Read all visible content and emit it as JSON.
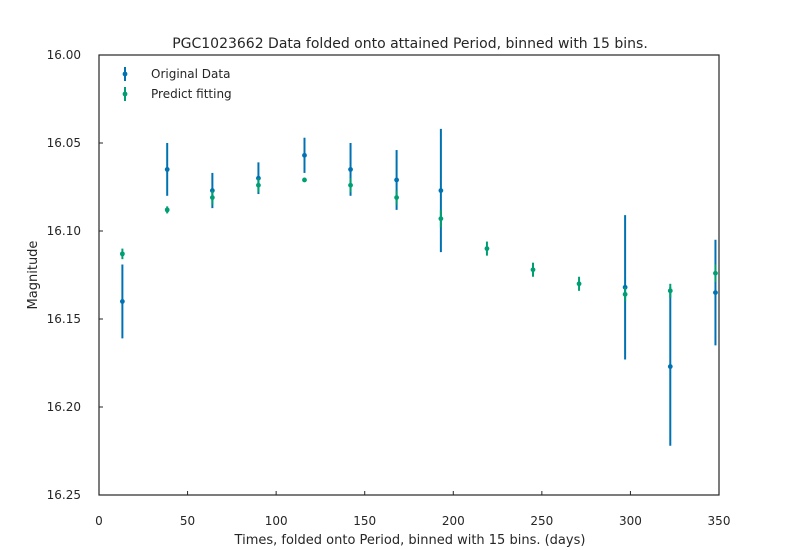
{
  "chart_data": {
    "type": "scatter",
    "title": "PGC1023662 Data folded onto attained Period, binned with 15 bins.",
    "xlabel": "Times, folded onto Period, binned with 15 bins. (days)",
    "ylabel": "Magnitude",
    "xlim": [
      0,
      350
    ],
    "ylim": [
      16.25,
      16.0
    ],
    "y_inverted": true,
    "xticks": [
      "0",
      "50",
      "100",
      "150",
      "200",
      "250",
      "300",
      "350"
    ],
    "yticks": [
      "16.00",
      "16.05",
      "16.10",
      "16.15",
      "16.20",
      "16.25"
    ],
    "grid": false,
    "legend_position": "top-left",
    "series": [
      {
        "name": "Original Data",
        "color": "#0072b2",
        "points": [
          {
            "x": 13.2,
            "y": 16.14,
            "err": 0.021
          },
          {
            "x": 38.5,
            "y": 16.065,
            "err": 0.015
          },
          {
            "x": 64.0,
            "y": 16.077,
            "err": 0.01
          },
          {
            "x": 90.0,
            "y": 16.07,
            "err": 0.009
          },
          {
            "x": 116.0,
            "y": 16.057,
            "err": 0.01
          },
          {
            "x": 142.0,
            "y": 16.065,
            "err": 0.015
          },
          {
            "x": 168.0,
            "y": 16.071,
            "err": 0.017
          },
          {
            "x": 193.0,
            "y": 16.077,
            "err": 0.035
          },
          {
            "x": 297.0,
            "y": 16.132,
            "err": 0.041
          },
          {
            "x": 322.5,
            "y": 16.177,
            "err": 0.045
          },
          {
            "x": 348.0,
            "y": 16.135,
            "err": 0.03
          }
        ]
      },
      {
        "name": "Predict fitting",
        "color": "#009e73",
        "points": [
          {
            "x": 13.2,
            "y": 16.113,
            "err": 0.003
          },
          {
            "x": 38.5,
            "y": 16.088,
            "err": 0.002
          },
          {
            "x": 64.0,
            "y": 16.081,
            "err": 0.004
          },
          {
            "x": 90.0,
            "y": 16.074,
            "err": 0.004
          },
          {
            "x": 116.0,
            "y": 16.071,
            "err": 0.001
          },
          {
            "x": 142.0,
            "y": 16.074,
            "err": 0.004
          },
          {
            "x": 168.0,
            "y": 16.081,
            "err": 0.004
          },
          {
            "x": 193.0,
            "y": 16.093,
            "err": 0.005
          },
          {
            "x": 219.0,
            "y": 16.11,
            "err": 0.004
          },
          {
            "x": 245.0,
            "y": 16.122,
            "err": 0.004
          },
          {
            "x": 271.0,
            "y": 16.13,
            "err": 0.004
          },
          {
            "x": 297.0,
            "y": 16.136,
            "err": 0.004
          },
          {
            "x": 322.5,
            "y": 16.134,
            "err": 0.004
          },
          {
            "x": 348.0,
            "y": 16.124,
            "err": 0.005
          }
        ]
      }
    ]
  }
}
